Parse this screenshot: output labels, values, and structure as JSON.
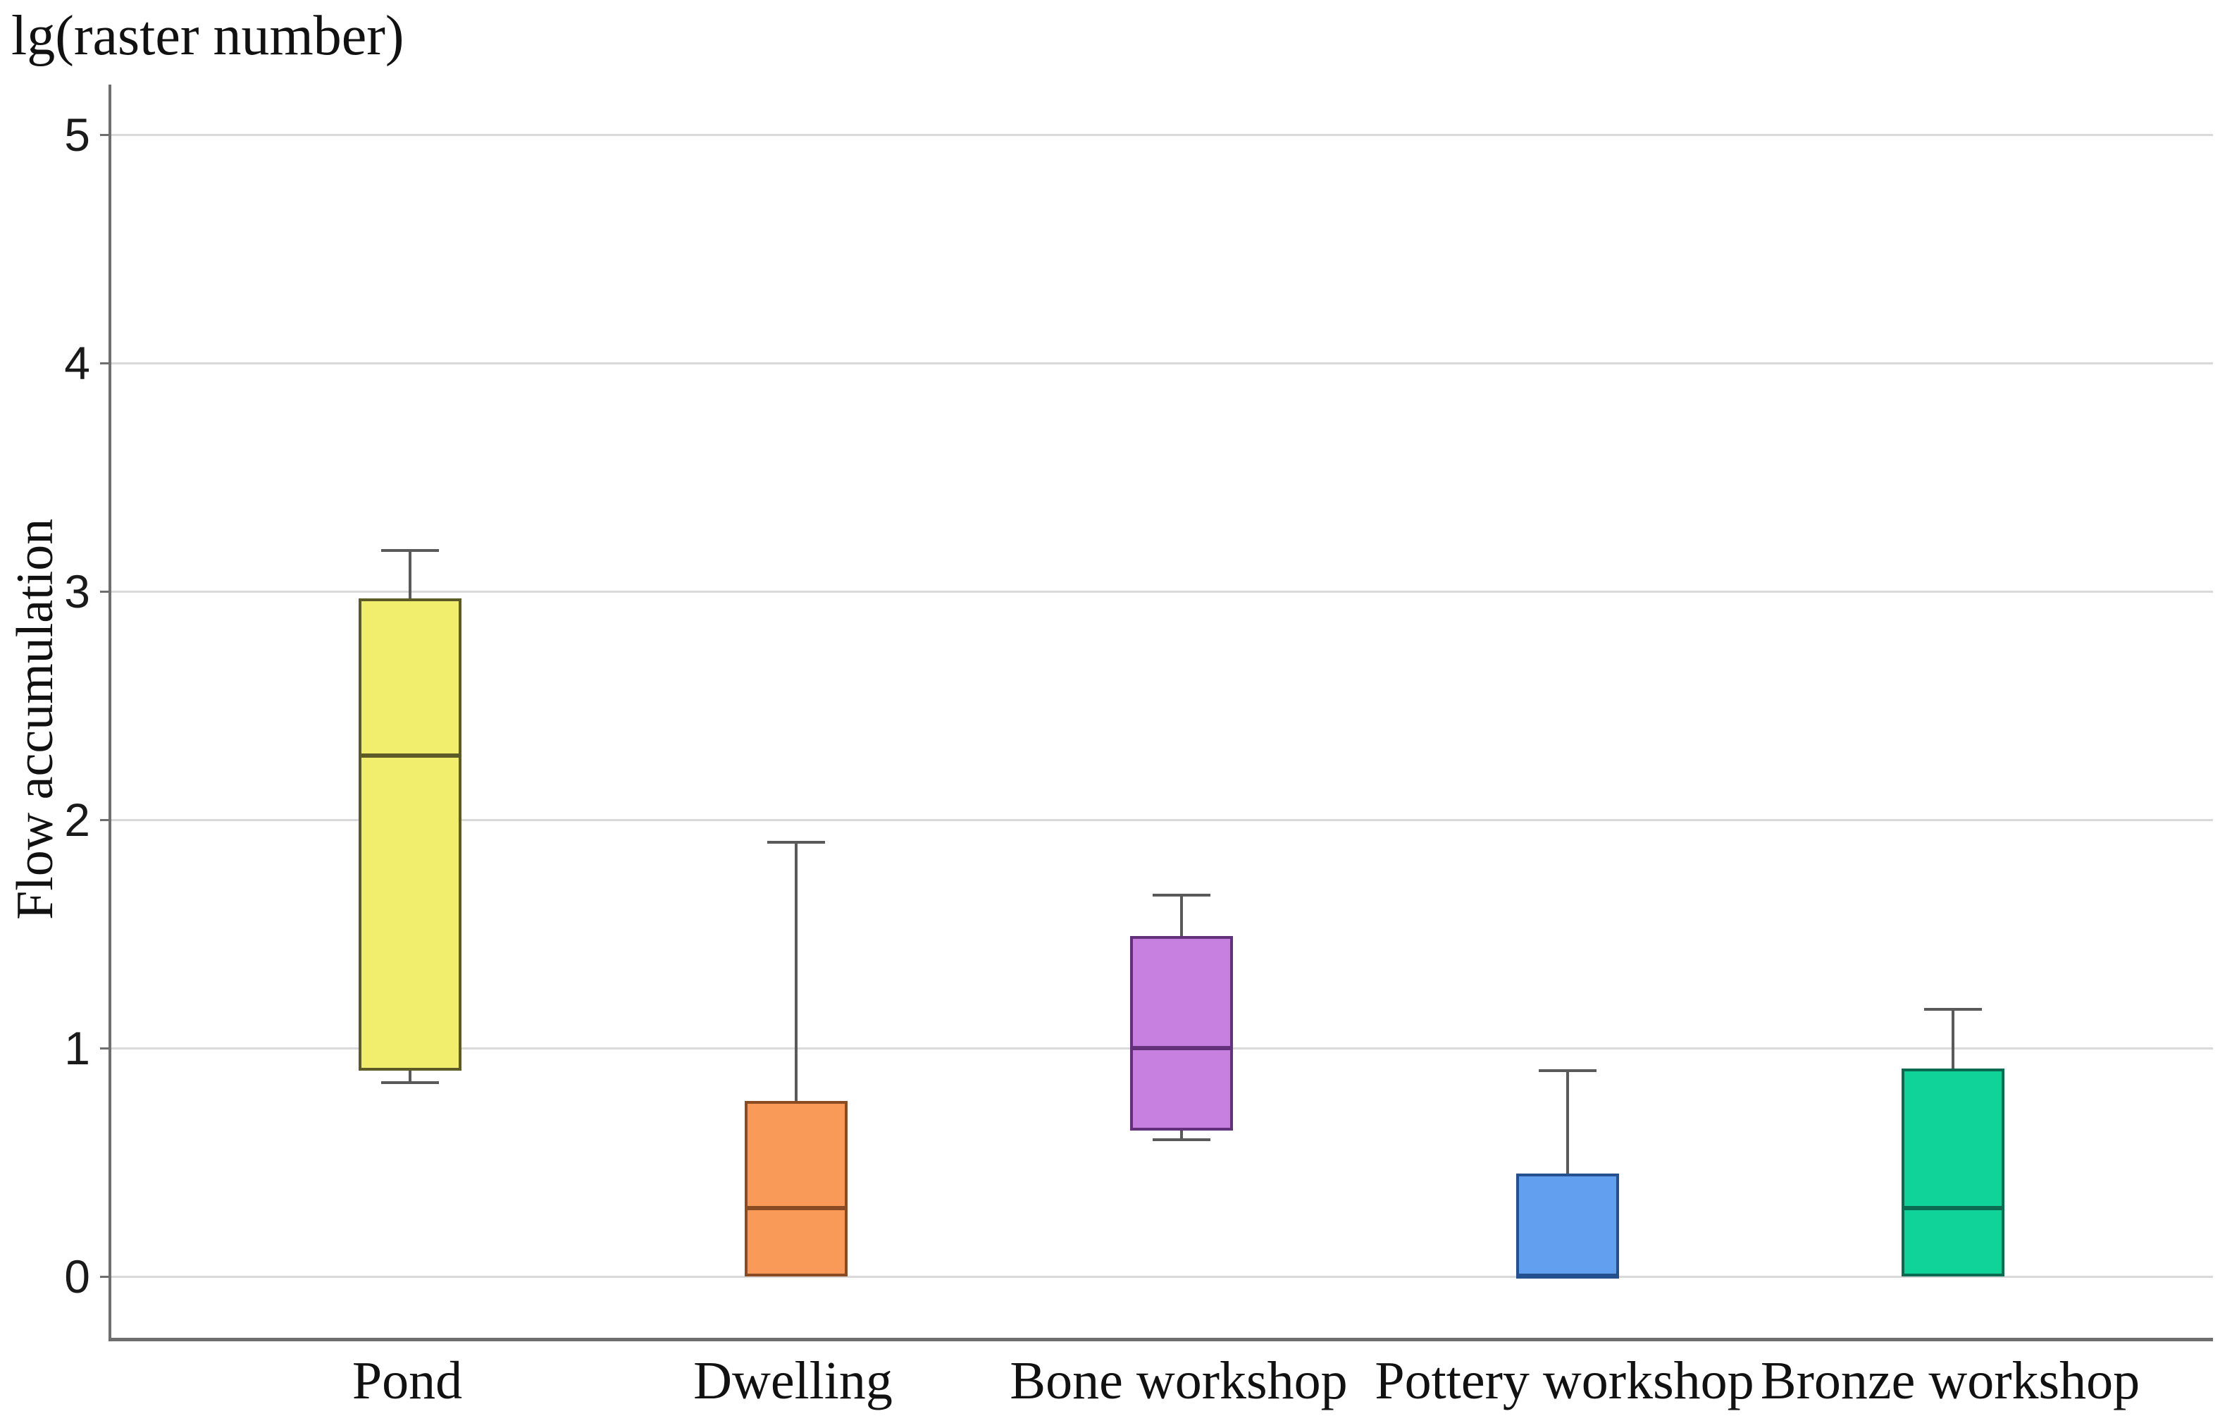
{
  "chart_data": {
    "type": "boxplot",
    "title": "lg(raster number)",
    "ylabel": "Flow accumulation",
    "ylim": [
      0,
      5
    ],
    "yticks": [
      0,
      1,
      2,
      3,
      4,
      5
    ],
    "grid": true,
    "legend": "none",
    "background": "#ffffff",
    "gridline_color": "#d9d9d9",
    "axis_color": "#6f6f6f",
    "whisker_color": "#5a5a5a",
    "categories": [
      "Pond",
      "Dwelling",
      "Bone workshop",
      "Pottery workshop",
      "Bronze workshop"
    ],
    "series": [
      {
        "name": "Pond",
        "min": 0.85,
        "q1": 0.9,
        "median": 2.28,
        "q3": 2.97,
        "max": 3.18,
        "fill": "#f2ee6d",
        "stroke": "#5c5b28"
      },
      {
        "name": "Dwelling",
        "min": 0.0,
        "q1": 0.0,
        "median": 0.3,
        "q3": 0.77,
        "max": 1.9,
        "fill": "#f99a59",
        "stroke": "#8a4a22"
      },
      {
        "name": "Bone workshop",
        "min": 0.6,
        "q1": 0.64,
        "median": 1.0,
        "q3": 1.49,
        "max": 1.67,
        "fill": "#c77fe0",
        "stroke": "#63307a"
      },
      {
        "name": "Pottery workshop",
        "min": 0.0,
        "q1": 0.0,
        "median": 0.0,
        "q3": 0.45,
        "max": 0.9,
        "fill": "#62a0ef",
        "stroke": "#24508f"
      },
      {
        "name": "Bronze workshop",
        "min": 0.0,
        "q1": 0.0,
        "median": 0.3,
        "q3": 0.91,
        "max": 1.17,
        "fill": "#10d39a",
        "stroke": "#0b6b50"
      }
    ]
  }
}
